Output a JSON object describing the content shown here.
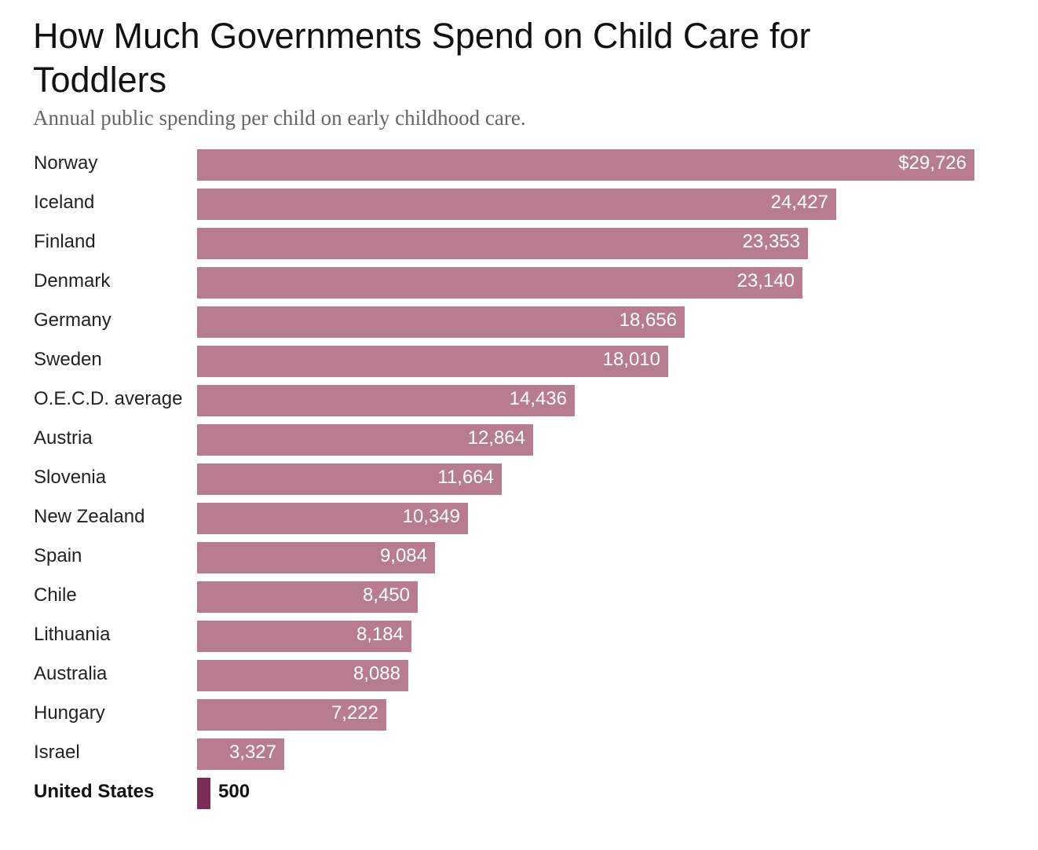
{
  "title": "How Much Governments Spend on Child Care for Toddlers",
  "subtitle": "Annual public spending per child on early childhood care.",
  "colors": {
    "bar": "#b77c90",
    "highlight_bar": "#7c2d55"
  },
  "chart_data": {
    "type": "bar",
    "orientation": "horizontal",
    "title": "How Much Governments Spend on Child Care for Toddlers",
    "subtitle": "Annual public spending per child on early childhood care.",
    "categories": [
      "Norway",
      "Iceland",
      "Finland",
      "Denmark",
      "Germany",
      "Sweden",
      "O.E.C.D. average",
      "Austria",
      "Slovenia",
      "New Zealand",
      "Spain",
      "Chile",
      "Lithuania",
      "Australia",
      "Hungary",
      "Israel",
      "United States"
    ],
    "values": [
      29726,
      24427,
      23353,
      23140,
      18656,
      18010,
      14436,
      12864,
      11664,
      10349,
      9084,
      8450,
      8184,
      8088,
      7222,
      3327,
      500
    ],
    "value_labels": [
      "$29,726",
      "24,427",
      "23,353",
      "23,140",
      "18,656",
      "18,010",
      "14,436",
      "12,864",
      "11,664",
      "10,349",
      "9,084",
      "8,450",
      "8,184",
      "8,088",
      "7,222",
      "3,327",
      "500"
    ],
    "highlight": "United States",
    "xlabel": "",
    "ylabel": "",
    "grid": false,
    "legend": "none"
  }
}
